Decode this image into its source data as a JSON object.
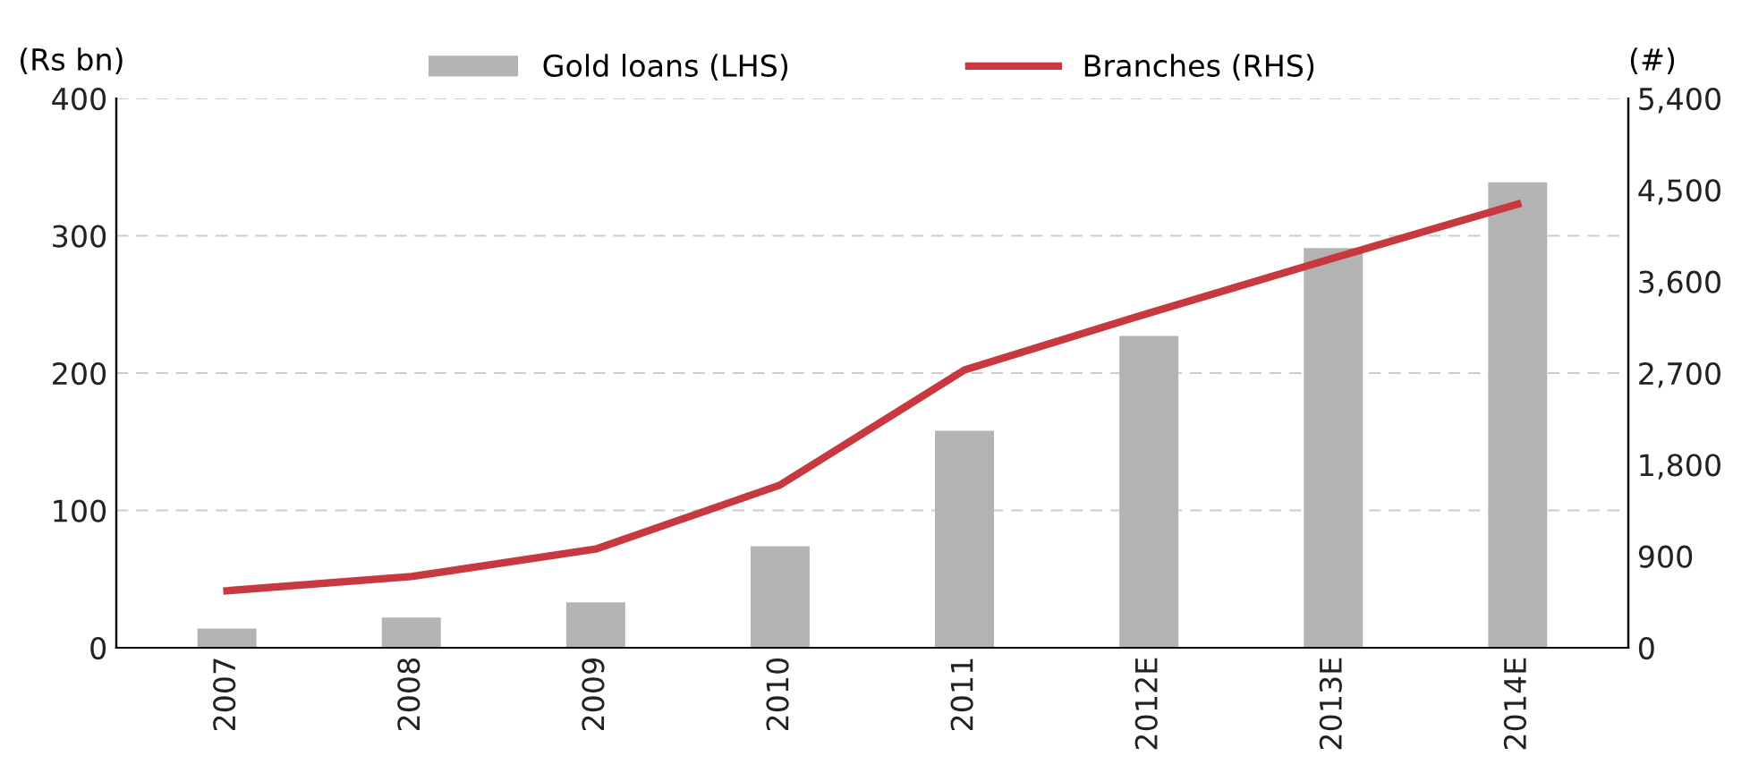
{
  "chart_data": {
    "type": "bar",
    "categories": [
      "2007",
      "2008",
      "2009",
      "2010",
      "2011",
      "2012E",
      "2013E",
      "2014E"
    ],
    "ylabel": "(Rs bn)",
    "y2label": "(#)",
    "series": [
      {
        "name": "Gold loans (LHS)",
        "color": "#b3b3b3",
        "values": [
          14,
          22,
          33,
          74,
          158,
          227,
          291,
          339
        ]
      },
      {
        "name": "Branches (RHS)",
        "type": "line",
        "axis": "y2",
        "color": "#c8393f",
        "values": [
          560,
          700,
          970,
          1600,
          2730,
          3290,
          3830,
          4360
        ]
      }
    ],
    "ylim": [
      0,
      400
    ],
    "yticks": [
      0,
      100,
      200,
      300,
      400
    ],
    "y2lim": [
      0,
      5400
    ],
    "y2ticks": [
      {
        "value": 0,
        "label": "0"
      },
      {
        "value": 900,
        "label": "900"
      },
      {
        "value": 1800,
        "label": "1,800"
      },
      {
        "value": 2700,
        "label": "2,700"
      },
      {
        "value": 3600,
        "label": "3,600"
      },
      {
        "value": 4500,
        "label": "4,500"
      },
      {
        "value": 5400,
        "label": "5,400"
      }
    ],
    "grid": "y",
    "legend": "top",
    "marker": "none",
    "line_style": "solid"
  }
}
